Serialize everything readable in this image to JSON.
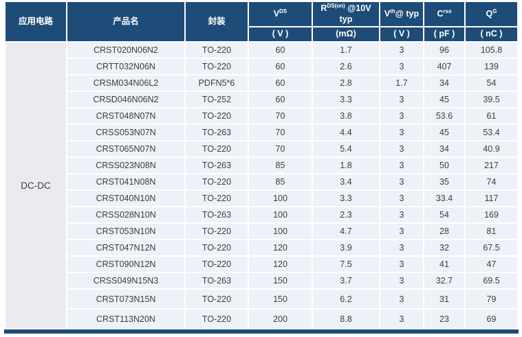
{
  "colors": {
    "header_bg": "#1E4C78",
    "cell_bg": "#EDF1F8",
    "application_cell_bg": "#EAEBEF",
    "header_text": "#FFFFFF",
    "body_text": "#3D3D3D",
    "grid_gap": "#FFFFFF",
    "bottom_bar": "#1E4C78"
  },
  "chart_data": {
    "type": "table",
    "title": "",
    "application_header": "应用电路",
    "application_value": "DC-DC",
    "product_header": "产品名",
    "package_header": "封装",
    "param_columns": [
      {
        "name": "VDS",
        "base": "V",
        "sup": "DS",
        "rest": "",
        "unit": "( V )"
      },
      {
        "name": "RDS(on) @10V typ",
        "base": "R",
        "sup": "DS(on)",
        "rest": " @10V typ",
        "unit": "(mΩ)"
      },
      {
        "name": "Vth@ typ",
        "base": "V",
        "sup": "th",
        "rest": "@ typ",
        "unit": "( V )"
      },
      {
        "name": "Crss",
        "base": "C",
        "sup": "rss",
        "rest": "",
        "unit": "( pF )"
      },
      {
        "name": "QG",
        "base": "Q",
        "sup": "G",
        "rest": "",
        "unit": "( nC )"
      }
    ],
    "row_fields": [
      "product",
      "package",
      "vds_v",
      "rdson_mohm",
      "vth_v",
      "crss_pf",
      "qg_nc"
    ],
    "rows": [
      [
        "CRST020N06N2",
        "TO-220",
        "60",
        "1.7",
        "3",
        "96",
        "105.8"
      ],
      [
        "CRTT032N06N",
        "TO-220",
        "60",
        "2.6",
        "3",
        "407",
        "139"
      ],
      [
        "CRSM034N06L2",
        "PDFN5*6",
        "60",
        "2.8",
        "1.7",
        "34",
        "54"
      ],
      [
        "CRSD046N06N2",
        "TO-252",
        "60",
        "3.3",
        "3",
        "45",
        "39.5"
      ],
      [
        "CRST048N07N",
        "TO-220",
        "70",
        "3.8",
        "3",
        "53.6",
        "61"
      ],
      [
        "CRSS053N07N",
        "TO-263",
        "70",
        "4.4",
        "3",
        "45",
        "53.4"
      ],
      [
        "CRST065N07N",
        "TO-220",
        "70",
        "5.4",
        "3",
        "34",
        "40.9"
      ],
      [
        "CRSS023N08N",
        "TO-263",
        "85",
        "1.8",
        "3",
        "50",
        "217"
      ],
      [
        "CRST041N08N",
        "TO-220",
        "85",
        "3.4",
        "3",
        "35",
        "74"
      ],
      [
        "CRST040N10N",
        "TO-220",
        "100",
        "3.3",
        "3",
        "33.4",
        "117"
      ],
      [
        "CRSS028N10N",
        "TO-263",
        "100",
        "2.3",
        "3",
        "54",
        "169"
      ],
      [
        "CRST053N10N",
        "TO-220",
        "100",
        "4.7",
        "3",
        "28",
        "81"
      ],
      [
        "CRST047N12N",
        "TO-220",
        "120",
        "3.9",
        "3",
        "32",
        "67.5"
      ],
      [
        "CRST090N12N",
        "TO-220",
        "120",
        "7.5",
        "3",
        "41",
        "47"
      ],
      [
        "CRSS049N15N3",
        "TO-263",
        "150",
        "3.7",
        "3",
        "32.7",
        "69.5"
      ],
      [
        "CRST073N15N",
        "TO-220",
        "150",
        "6.2",
        "3",
        "31",
        "79"
      ],
      [
        "CRST113N20N",
        "TO-220",
        "200",
        "8.8",
        "3",
        "23",
        "69"
      ]
    ]
  }
}
